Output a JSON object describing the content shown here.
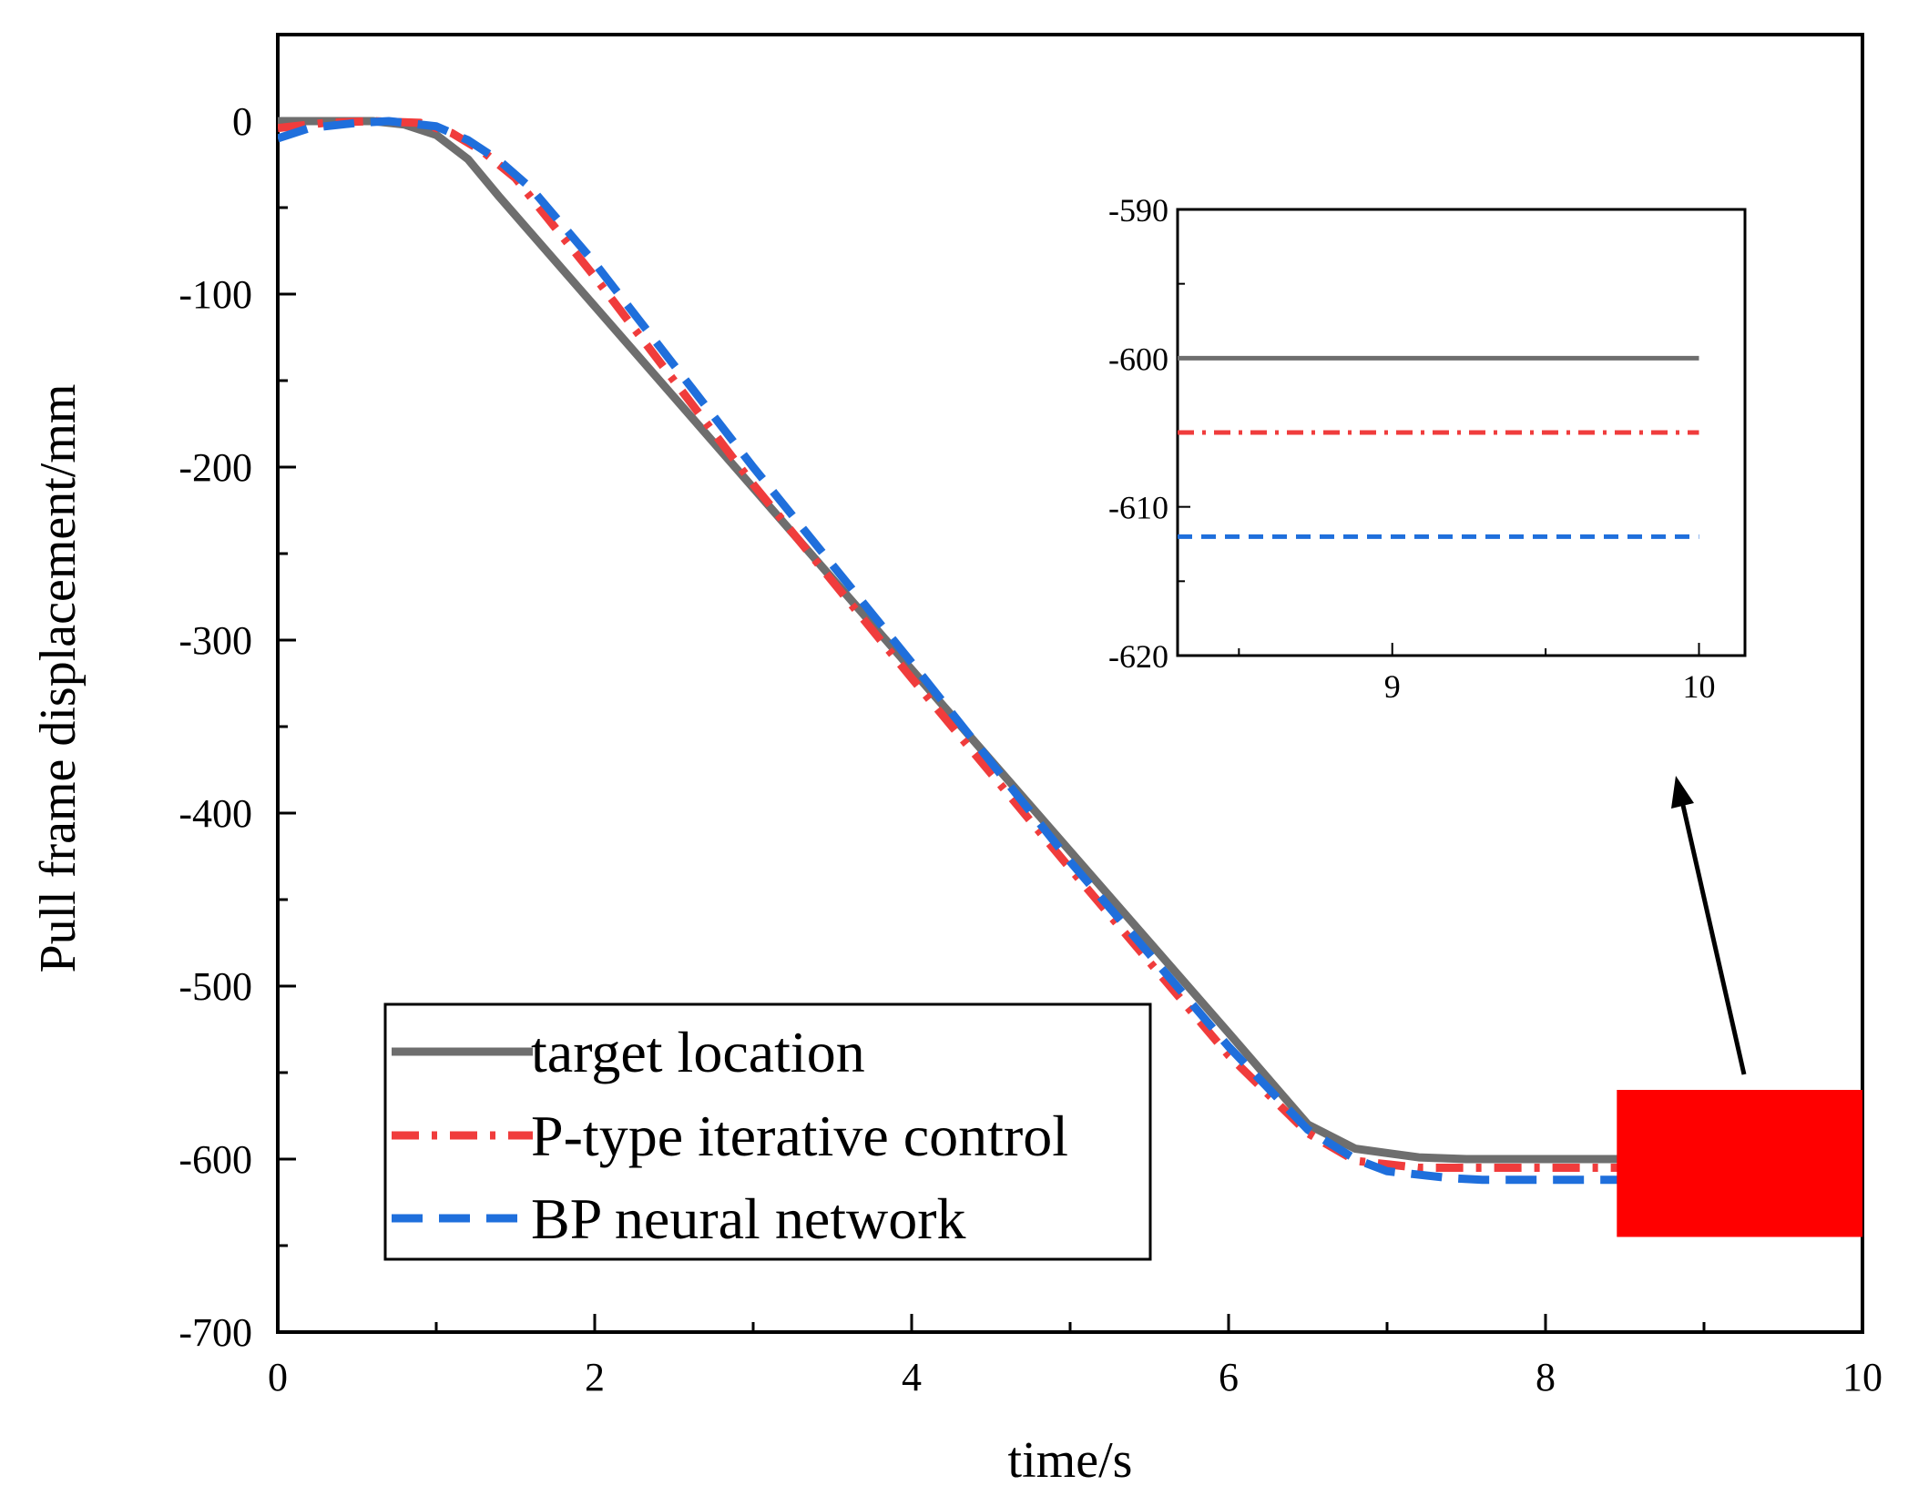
{
  "chart_data": {
    "type": "line",
    "xlabel": "time/s",
    "ylabel": "Pull frame displacement/mm",
    "xlim": [
      0,
      10
    ],
    "ylim": [
      -700,
      50
    ],
    "x_ticks": [
      "0",
      "2",
      "4",
      "6",
      "8",
      "10"
    ],
    "y_ticks": [
      "0",
      "-100",
      "-200",
      "-300",
      "-400",
      "-500",
      "-600",
      "-700"
    ],
    "legend_position": "bottom-left",
    "series": [
      {
        "name": "target location",
        "color": "#6e6e6e",
        "style": "solid",
        "points": [
          [
            0,
            0
          ],
          [
            0.6,
            0
          ],
          [
            0.8,
            -2
          ],
          [
            1.0,
            -8
          ],
          [
            1.2,
            -22
          ],
          [
            1.4,
            -44
          ],
          [
            2.0,
            -107
          ],
          [
            3.0,
            -212
          ],
          [
            4.0,
            -317
          ],
          [
            5.0,
            -422
          ],
          [
            6.0,
            -527
          ],
          [
            6.5,
            -580
          ],
          [
            6.8,
            -594
          ],
          [
            7.2,
            -599
          ],
          [
            7.5,
            -600
          ],
          [
            10,
            -600
          ]
        ]
      },
      {
        "name": "P-type iterative control",
        "color": "#f03c3c",
        "style": "dashdot",
        "points": [
          [
            0,
            -4
          ],
          [
            0.3,
            -1
          ],
          [
            0.6,
            0
          ],
          [
            0.9,
            -1
          ],
          [
            1.1,
            -7
          ],
          [
            1.3,
            -18
          ],
          [
            1.5,
            -33
          ],
          [
            2.0,
            -90
          ],
          [
            3.0,
            -210
          ],
          [
            4.0,
            -322
          ],
          [
            5.0,
            -432
          ],
          [
            6.0,
            -540
          ],
          [
            6.5,
            -585
          ],
          [
            6.8,
            -601
          ],
          [
            7.2,
            -605
          ],
          [
            10,
            -605
          ]
        ]
      },
      {
        "name": "BP neural network",
        "color": "#1f6fdc",
        "style": "dashed",
        "points": [
          [
            0,
            -10
          ],
          [
            0.2,
            -4
          ],
          [
            0.5,
            -1
          ],
          [
            0.7,
            0
          ],
          [
            1.0,
            -3
          ],
          [
            1.2,
            -11
          ],
          [
            1.4,
            -23
          ],
          [
            1.6,
            -39
          ],
          [
            2.0,
            -82
          ],
          [
            3.0,
            -200
          ],
          [
            4.0,
            -313
          ],
          [
            5.0,
            -428
          ],
          [
            6.0,
            -535
          ],
          [
            6.5,
            -583
          ],
          [
            6.8,
            -600
          ],
          [
            7.0,
            -607
          ],
          [
            7.4,
            -611
          ],
          [
            7.6,
            -612
          ],
          [
            10,
            -612
          ]
        ]
      }
    ],
    "highlight_region": {
      "x": [
        8.45,
        10
      ],
      "y": [
        -645,
        -560
      ],
      "color": "#ff0000"
    },
    "inset": {
      "xlim": [
        8.3,
        10.15
      ],
      "ylim": [
        -620,
        -590
      ],
      "x_ticks": [
        "9",
        "10"
      ],
      "y_ticks": [
        "-590",
        "-600",
        "-610",
        "-620"
      ],
      "series": [
        {
          "name": "target location",
          "value": -600,
          "x": [
            8.3,
            10
          ]
        },
        {
          "name": "P-type iterative control",
          "value": -605,
          "x": [
            8.3,
            10
          ]
        },
        {
          "name": "BP neural network",
          "value": -612,
          "x": [
            8.3,
            10
          ]
        }
      ]
    }
  }
}
